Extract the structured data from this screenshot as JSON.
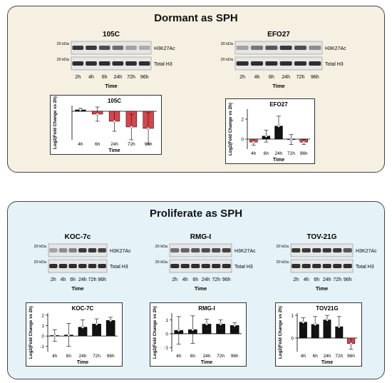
{
  "panels": {
    "top_title": "Dormant as SPH",
    "bottom_title": "Proliferate as SPH"
  },
  "blots": [
    {
      "id": "b105c",
      "title": "105C",
      "kda_top": "20 kDa",
      "kda_bottom": "20 kDa",
      "label_top": "H3K27Ac",
      "label_bottom": "Total H3",
      "lanes": [
        "2h",
        "4h",
        "6h",
        "24h",
        "72h",
        "96h"
      ],
      "xlabel": "Time",
      "top_intensity": [
        0.85,
        0.85,
        0.75,
        0.6,
        0.35,
        0.3
      ],
      "bottom_intensity": [
        0.9,
        0.9,
        0.9,
        0.9,
        0.9,
        0.9
      ]
    },
    {
      "id": "befo27",
      "title": "EFO27",
      "kda_top": "20 kDa",
      "kda_bottom": "20 kDa",
      "label_top": "H3K27Ac",
      "label_bottom": "Total H3",
      "lanes": [
        "2h",
        "4h",
        "6h",
        "24h",
        "72h",
        "96h"
      ],
      "xlabel": "Time",
      "top_intensity": [
        0.35,
        0.55,
        0.7,
        0.85,
        0.75,
        0.45
      ],
      "bottom_intensity": [
        0.9,
        0.9,
        0.9,
        0.9,
        0.9,
        0.9
      ]
    },
    {
      "id": "bkoc",
      "title": "KOC-7c",
      "kda_top": "20 kDa",
      "kda_bottom": "20 kDa",
      "label_top": "H3K27Ac",
      "label_bottom": "Total H3",
      "lanes": [
        "2h",
        "4h",
        "6h",
        "24h",
        "72h",
        "96h"
      ],
      "xlabel": "Time",
      "top_intensity": [
        0.35,
        0.45,
        0.5,
        0.85,
        0.85,
        0.8
      ],
      "bottom_intensity": [
        0.9,
        0.9,
        0.9,
        0.9,
        0.9,
        0.9
      ]
    },
    {
      "id": "brmg",
      "title": "RMG-I",
      "kda_top": "20 kDa",
      "kda_bottom": "20 kDa",
      "label_top": "H3K27Ac",
      "label_bottom": "Total H3",
      "lanes": [
        "2h",
        "4h",
        "6h",
        "24h",
        "72h",
        "96h"
      ],
      "xlabel": "Time",
      "top_intensity": [
        0.6,
        0.65,
        0.7,
        0.75,
        0.75,
        0.8
      ],
      "bottom_intensity": [
        0.9,
        0.9,
        0.9,
        0.9,
        0.9,
        0.9
      ]
    },
    {
      "id": "btov",
      "title": "TOV-21G",
      "kda_top": "20 kDa",
      "kda_bottom": "20 kDa",
      "label_top": "H3K27Ac",
      "label_bottom": "Total H3",
      "lanes": [
        "2h",
        "4h",
        "6h",
        "24h",
        "72h",
        "96h"
      ],
      "xlabel": "Time",
      "top_intensity": [
        0.85,
        0.85,
        0.85,
        0.85,
        0.85,
        0.7
      ],
      "bottom_intensity": [
        0.9,
        0.9,
        0.9,
        0.9,
        0.9,
        0.9
      ]
    }
  ],
  "chart_data": [
    {
      "id": "c105c",
      "type": "bar",
      "title": "105C",
      "xlabel": "Time",
      "ylabel": "Log2(Fold Change vs 2h)",
      "categories": [
        "4h",
        "6h",
        "24h",
        "72h",
        "96h"
      ],
      "series": [
        {
          "values": [
            0.05,
            -0.1,
            -0.35,
            -0.55,
            -0.6
          ],
          "errors": [
            0.05,
            0.25,
            0.35,
            0.45,
            0.55
          ]
        }
      ],
      "ylim": [
        -1.0,
        0.2
      ],
      "yticks": [],
      "colors": [
        "#111111",
        "#d9434a",
        "#d9434a",
        "#d9434a",
        "#d9434a"
      ]
    },
    {
      "id": "cefo27",
      "type": "bar",
      "title": "EFO27",
      "xlabel": "Time",
      "ylabel": "Log2(Fold Change vs 2h)",
      "categories": [
        "4h",
        "6h",
        "24h",
        "72h",
        "96h"
      ],
      "series": [
        {
          "values": [
            -0.3,
            0.3,
            1.3,
            -0.05,
            -0.3
          ],
          "errors": [
            0.3,
            0.6,
            1.0,
            0.5,
            0.25
          ]
        }
      ],
      "ylim": [
        -1.0,
        3.0
      ],
      "yticks": [
        0,
        2
      ],
      "colors": [
        "#d9434a",
        "#111111",
        "#111111",
        "#d9434a",
        "#d9434a"
      ]
    },
    {
      "id": "ckoc",
      "type": "bar",
      "title": "KOC-7C",
      "xlabel": "Time",
      "ylabel": "Log2(Fold Change vs 2h)",
      "categories": [
        "4h",
        "6h",
        "24h",
        "72h",
        "96h"
      ],
      "series": [
        {
          "values": [
            0.05,
            0.1,
            0.85,
            1.15,
            1.5
          ],
          "errors": [
            0.55,
            1.1,
            0.7,
            0.5,
            0.3
          ]
        }
      ],
      "ylim": [
        -1.5,
        2.2
      ],
      "yticks": [
        -1,
        0,
        1,
        2
      ],
      "colors": [
        "#111111",
        "#111111",
        "#111111",
        "#111111",
        "#111111"
      ]
    },
    {
      "id": "crmg",
      "type": "bar",
      "title": "RMG-I",
      "xlabel": "Time",
      "ylabel": "Log2(Fold Change vs 2h)",
      "categories": [
        "4h",
        "6h",
        "24h",
        "72h",
        "96h"
      ],
      "series": [
        {
          "values": [
            0.25,
            0.3,
            0.7,
            0.7,
            0.6
          ],
          "errors": [
            1.0,
            1.0,
            0.35,
            0.3,
            0.2
          ]
        }
      ],
      "ylim": [
        -1.3,
        1.5
      ],
      "yticks": [
        -1,
        0,
        1
      ],
      "colors": [
        "#111111",
        "#111111",
        "#111111",
        "#111111",
        "#111111"
      ]
    },
    {
      "id": "ctov",
      "type": "bar",
      "title": "TOV21G",
      "xlabel": "Time",
      "ylabel": "Log2(Fold Change vs 2h)",
      "categories": [
        "4h",
        "6h",
        "24h",
        "72h",
        "96h"
      ],
      "series": [
        {
          "values": [
            0.7,
            0.6,
            0.8,
            0.5,
            -0.25
          ],
          "errors": [
            0.2,
            0.35,
            0.2,
            0.45,
            0.25
          ]
        }
      ],
      "ylim": [
        -0.6,
        1.1
      ],
      "yticks": [
        0,
        1
      ],
      "colors": [
        "#111111",
        "#111111",
        "#111111",
        "#111111",
        "#d9434a"
      ]
    }
  ]
}
